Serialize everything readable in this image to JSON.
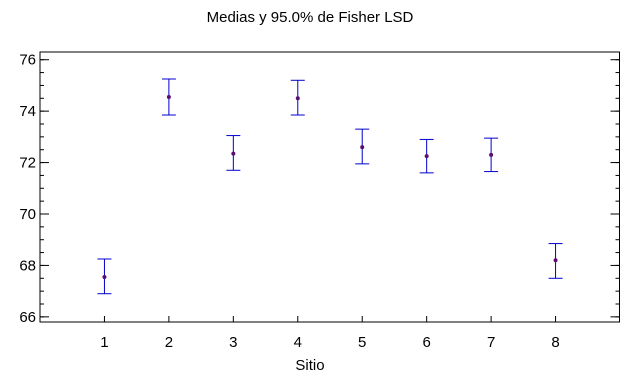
{
  "chart_data": {
    "type": "scatter",
    "title": "Medias y 95.0% de Fisher LSD",
    "xlabel": "Sitio",
    "ylabel": "",
    "categories": [
      "1",
      "2",
      "3",
      "4",
      "5",
      "6",
      "7",
      "8"
    ],
    "means": [
      67.55,
      74.55,
      72.35,
      74.5,
      72.6,
      72.25,
      72.3,
      68.2
    ],
    "lower": [
      66.9,
      73.85,
      71.7,
      73.85,
      71.95,
      71.6,
      71.65,
      67.5
    ],
    "upper": [
      68.25,
      75.25,
      73.05,
      75.2,
      73.3,
      72.9,
      72.95,
      68.85
    ],
    "ylim": [
      65.8,
      76.3
    ],
    "xlim": [
      0,
      9
    ],
    "yticks": [
      66,
      68,
      70,
      72,
      74,
      76
    ],
    "y_minor_step": 0.5,
    "grid": false,
    "colors": {
      "interval": "#0000cc",
      "mean": "#5a0f6e",
      "axis": "#000000"
    }
  }
}
